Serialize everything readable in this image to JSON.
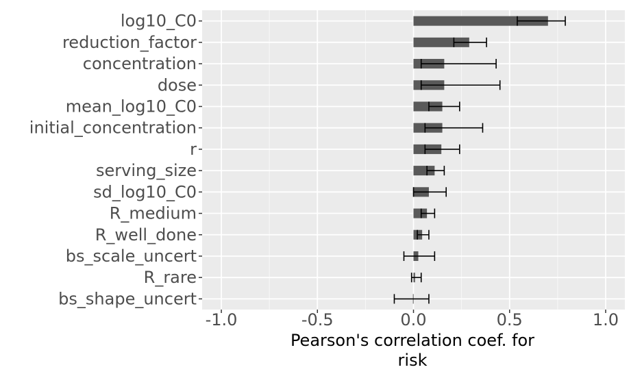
{
  "chart_data": {
    "type": "bar",
    "orientation": "horizontal",
    "title": "",
    "xlabel_lines": [
      "Pearson's correlation coef. for",
      "risk"
    ],
    "ylabel": "",
    "xlim": [
      -1.1,
      1.1
    ],
    "x_ticks": [
      -1.0,
      -0.5,
      0.0,
      0.5,
      1.0
    ],
    "x_tick_labels": [
      "-1.0",
      "-0.5",
      "0.0",
      "0.5",
      "1.0"
    ],
    "grid": true,
    "colors": {
      "panel": "#ebebeb",
      "grid_major": "#ffffff",
      "grid_minor": "#f7f7f7",
      "bar": "#595959",
      "errorbar": "#000000",
      "tick_text": "#4d4d4d"
    },
    "categories": [
      "log10_C0",
      "reduction_factor",
      "concentration",
      "dose",
      "mean_log10_C0",
      "initial_concentration",
      "r",
      "serving_size",
      "sd_log10_C0",
      "R_medium",
      "R_well_done",
      "bs_scale_uncert",
      "R_rare",
      "bs_shape_uncert"
    ],
    "values": [
      0.7,
      0.29,
      0.16,
      0.16,
      0.15,
      0.15,
      0.145,
      0.11,
      0.08,
      0.07,
      0.045,
      0.025,
      0.008,
      -0.003
    ],
    "error_low": [
      0.54,
      0.21,
      0.04,
      0.04,
      0.08,
      0.06,
      0.06,
      0.07,
      0.0,
      0.04,
      0.02,
      -0.05,
      -0.01,
      -0.1
    ],
    "error_high": [
      0.79,
      0.38,
      0.43,
      0.45,
      0.24,
      0.36,
      0.24,
      0.16,
      0.17,
      0.11,
      0.08,
      0.11,
      0.04,
      0.08
    ]
  }
}
